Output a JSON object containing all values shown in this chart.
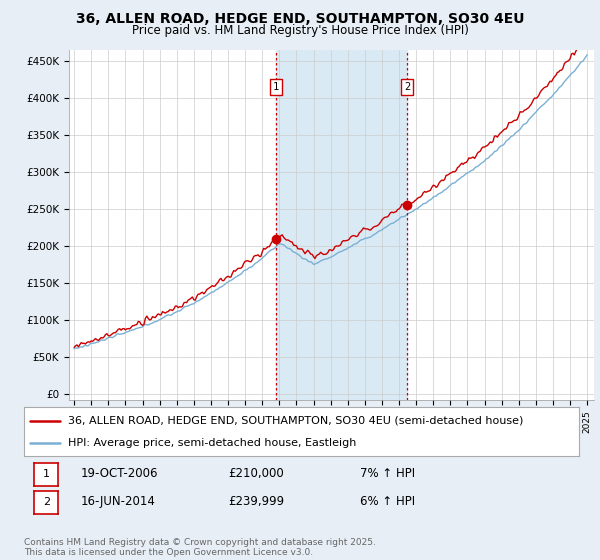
{
  "title": "36, ALLEN ROAD, HEDGE END, SOUTHAMPTON, SO30 4EU",
  "subtitle": "Price paid vs. HM Land Registry's House Price Index (HPI)",
  "yticks": [
    0,
    50000,
    100000,
    150000,
    200000,
    250000,
    300000,
    350000,
    400000,
    450000
  ],
  "ytick_labels": [
    "£0",
    "£50K",
    "£100K",
    "£150K",
    "£200K",
    "£250K",
    "£300K",
    "£350K",
    "£400K",
    "£450K"
  ],
  "ylim": [
    -8000,
    465000
  ],
  "property_color": "#cc0000",
  "hpi_color": "#7ab0d4",
  "span_color": "#daeaf5",
  "property_label": "36, ALLEN ROAD, HEDGE END, SOUTHAMPTON, SO30 4EU (semi-detached house)",
  "hpi_label": "HPI: Average price, semi-detached house, Eastleigh",
  "purchase1_date": "19-OCT-2006",
  "purchase1_price": "£210,000",
  "purchase1_pct": "7% ↑ HPI",
  "purchase1_year": 2006.8,
  "purchase1_value": 210000,
  "purchase2_date": "16-JUN-2014",
  "purchase2_price": "£239,999",
  "purchase2_pct": "6% ↑ HPI",
  "purchase2_year": 2014.46,
  "purchase2_value": 239999,
  "vline_color": "#cc0000",
  "grid_color": "#cccccc",
  "bg_color": "#ffffff",
  "fig_bg": "#e8eef5",
  "footer": "Contains HM Land Registry data © Crown copyright and database right 2025.\nThis data is licensed under the Open Government Licence v3.0.",
  "title_fontsize": 10,
  "subtitle_fontsize": 8.5,
  "axis_fontsize": 7.5,
  "legend_fontsize": 8,
  "footer_fontsize": 6.5
}
